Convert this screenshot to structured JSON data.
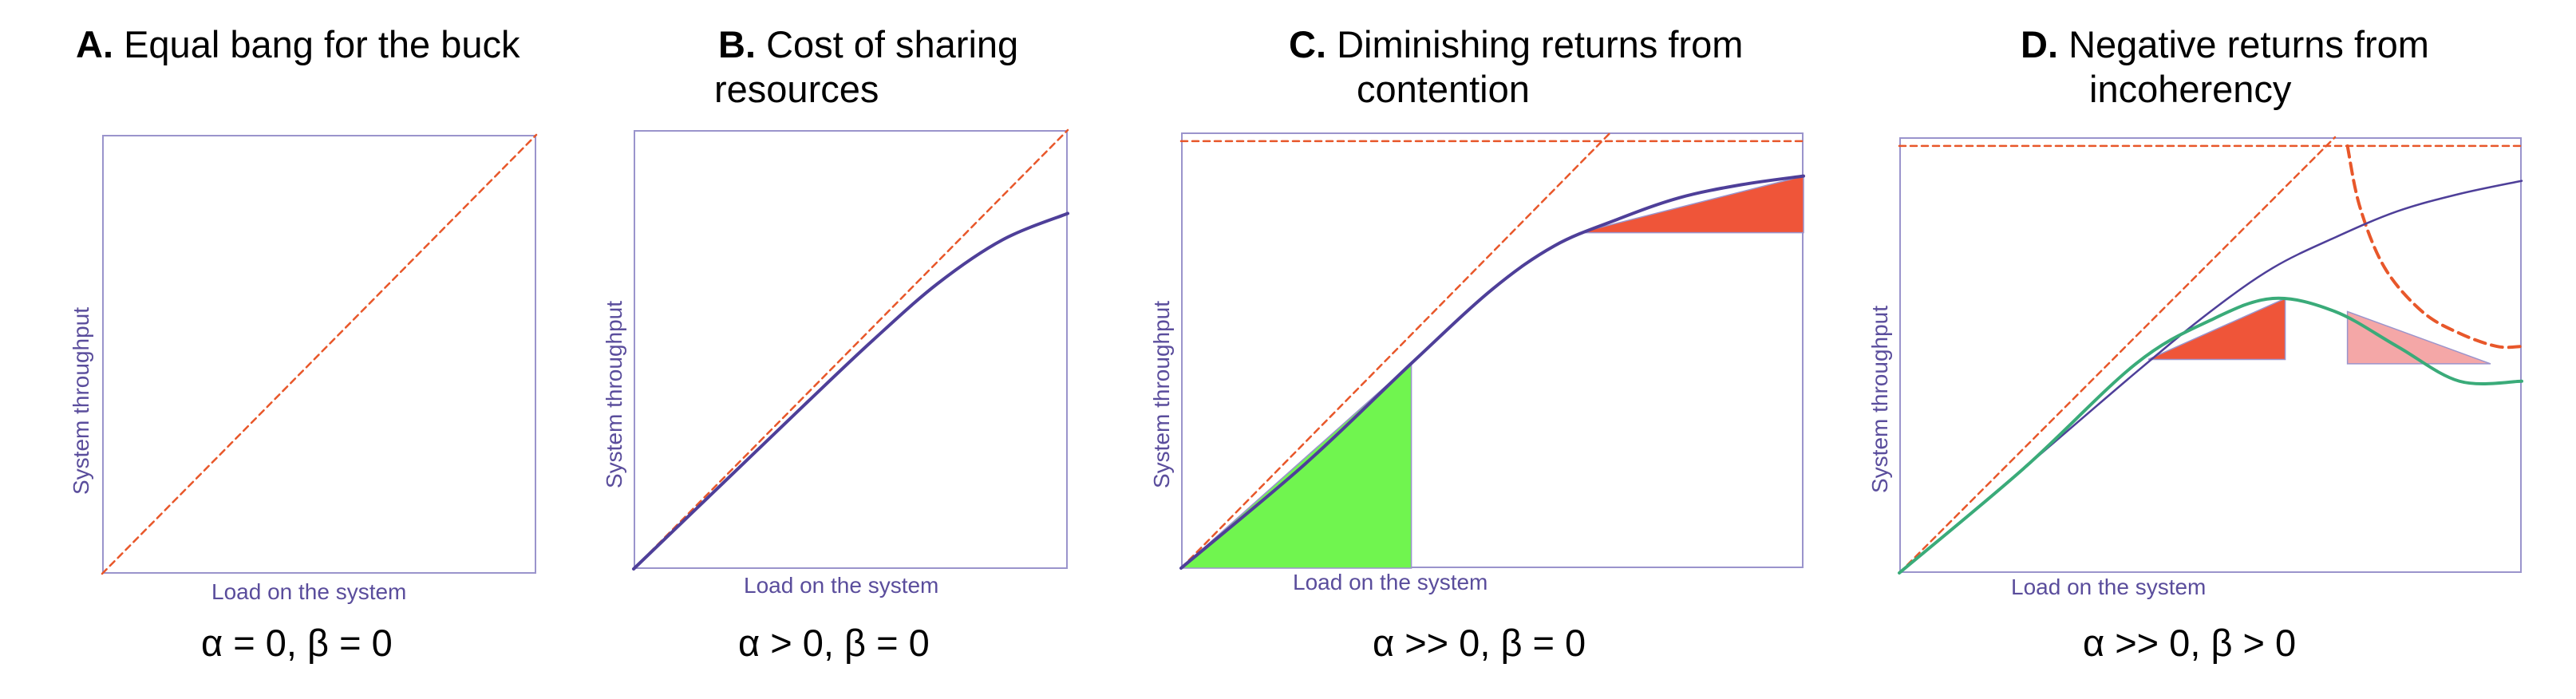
{
  "chart_data": [
    {
      "type": "line",
      "title_letter": "A.",
      "title_lines": [
        "Equal bang for the buck"
      ],
      "xlabel": "Load on the system",
      "ylabel": "System throughput",
      "params": "α = 0, β = 0",
      "xlim": [
        0,
        1
      ],
      "ylim": [
        0,
        1
      ],
      "series": [
        {
          "style": "dashed",
          "color": "#e8572a",
          "x": [
            0,
            1
          ],
          "y": [
            0,
            1
          ]
        }
      ]
    },
    {
      "type": "line",
      "title_letter": "B.",
      "title_lines": [
        "Cost of sharing",
        "resources"
      ],
      "xlabel": "Load on the system",
      "ylabel": "System throughput",
      "params": "α > 0, β = 0",
      "xlim": [
        0,
        1
      ],
      "ylim": [
        0,
        1
      ],
      "series": [
        {
          "style": "dashed",
          "color": "#e8572a",
          "x": [
            0,
            1
          ],
          "y": [
            0,
            1
          ]
        },
        {
          "style": "solid",
          "color": "#4e3f99",
          "x": [
            0,
            0.2,
            0.4,
            0.55,
            0.7,
            0.85,
            1.0
          ],
          "y": [
            0,
            0.19,
            0.38,
            0.52,
            0.65,
            0.75,
            0.81
          ]
        }
      ]
    },
    {
      "type": "line",
      "title_letter": "C.",
      "title_lines": [
        "Diminishing returns from",
        "contention"
      ],
      "xlabel": "Load on the system",
      "ylabel": "System throughput",
      "params": "α >> 0, β = 0",
      "xlim": [
        0,
        1
      ],
      "ylim": [
        0,
        1
      ],
      "series": [
        {
          "style": "dashed",
          "color": "#e8572a",
          "x": [
            0,
            0.69
          ],
          "y": [
            0,
            1
          ]
        },
        {
          "style": "dashed",
          "color": "#e8572a",
          "x": [
            0,
            1
          ],
          "y": [
            0.98,
            0.98
          ]
        },
        {
          "style": "solid",
          "color": "#4e3f99",
          "x": [
            0,
            0.2,
            0.37,
            0.5,
            0.6,
            0.7,
            0.8,
            0.9,
            1.0
          ],
          "y": [
            0,
            0.24,
            0.47,
            0.64,
            0.74,
            0.8,
            0.85,
            0.88,
            0.9
          ]
        },
        {
          "style": "fill",
          "color": "#70f54f",
          "x": [
            0,
            0.37,
            0.37
          ],
          "y": [
            0,
            0.47,
            0
          ]
        },
        {
          "style": "fill",
          "color": "#ef5539",
          "x": [
            0.64,
            1.0,
            1.0
          ],
          "y": [
            0.77,
            0.9,
            0.77
          ]
        }
      ]
    },
    {
      "type": "line",
      "title_letter": "D.",
      "title_lines": [
        "Negative returns from",
        "incoherency"
      ],
      "xlabel": "Load on the system",
      "ylabel": "System throughput",
      "params": "α >> 0, β > 0",
      "xlim": [
        0,
        1
      ],
      "ylim": [
        0,
        1
      ],
      "series": [
        {
          "style": "dashed",
          "color": "#e8572a",
          "x": [
            0,
            0.7
          ],
          "y": [
            0,
            1
          ]
        },
        {
          "style": "dashed",
          "color": "#e8572a",
          "x": [
            0,
            1
          ],
          "y": [
            0.98,
            0.98
          ]
        },
        {
          "style": "dashed-bold",
          "color": "#e8572a",
          "x": [
            0.72,
            0.74,
            0.78,
            0.84,
            0.9,
            0.96,
            1.0
          ],
          "y": [
            0.98,
            0.84,
            0.7,
            0.6,
            0.55,
            0.52,
            0.52
          ]
        },
        {
          "style": "solid-thin",
          "color": "#4e3f99",
          "x": [
            0,
            0.2,
            0.38,
            0.5,
            0.6,
            0.7,
            0.8,
            0.9,
            1.0
          ],
          "y": [
            0,
            0.24,
            0.46,
            0.6,
            0.7,
            0.77,
            0.83,
            0.87,
            0.9
          ]
        },
        {
          "style": "solid",
          "color": "#3aab79",
          "x": [
            0,
            0.2,
            0.38,
            0.5,
            0.6,
            0.7,
            0.8,
            0.9,
            1.0
          ],
          "y": [
            0,
            0.24,
            0.48,
            0.58,
            0.63,
            0.6,
            0.52,
            0.44,
            0.44
          ]
        },
        {
          "style": "fill",
          "color": "#ef5539",
          "x": [
            0.4,
            0.62,
            0.62
          ],
          "y": [
            0.49,
            0.63,
            0.49
          ]
        },
        {
          "style": "fill",
          "color": "#f4a7a7",
          "x": [
            0.72,
            0.95,
            0.72
          ],
          "y": [
            0.6,
            0.48,
            0.48
          ]
        }
      ]
    }
  ]
}
